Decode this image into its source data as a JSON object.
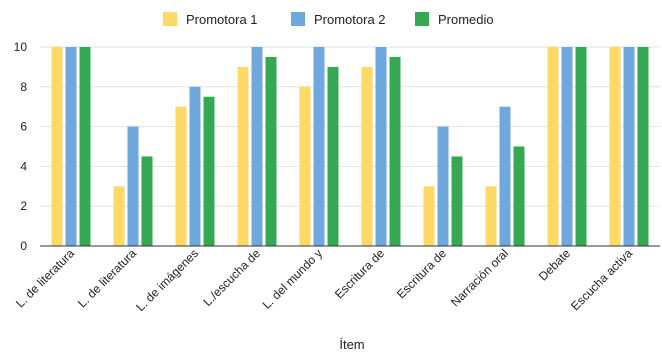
{
  "chart_data": {
    "type": "bar",
    "title": "",
    "xlabel": "Ítem",
    "ylabel": "",
    "ylim": [
      0,
      10
    ],
    "yticks": [
      0,
      2,
      4,
      6,
      8,
      10
    ],
    "grid": true,
    "legend_position": "top-center",
    "categories": [
      "L. de literatura",
      "L. de literatura",
      "L. de imágenes",
      "L./escucha de",
      "L. del mundo y",
      "Escritura de",
      "Escritura de",
      "Narración oral",
      "Debate",
      "Escucha activa"
    ],
    "series": [
      {
        "name": "Promotora 1",
        "color": "#FFD966",
        "values": [
          10,
          3,
          7,
          9,
          8,
          9,
          3,
          3,
          10,
          10
        ]
      },
      {
        "name": "Promotora 2",
        "color": "#6FA8DC",
        "values": [
          10,
          6,
          8,
          10,
          10,
          10,
          6,
          7,
          10,
          10
        ]
      },
      {
        "name": "Promedio",
        "color": "#34A853",
        "values": [
          10,
          4.5,
          7.5,
          9.5,
          9,
          9.5,
          4.5,
          5,
          10,
          10
        ]
      }
    ]
  }
}
